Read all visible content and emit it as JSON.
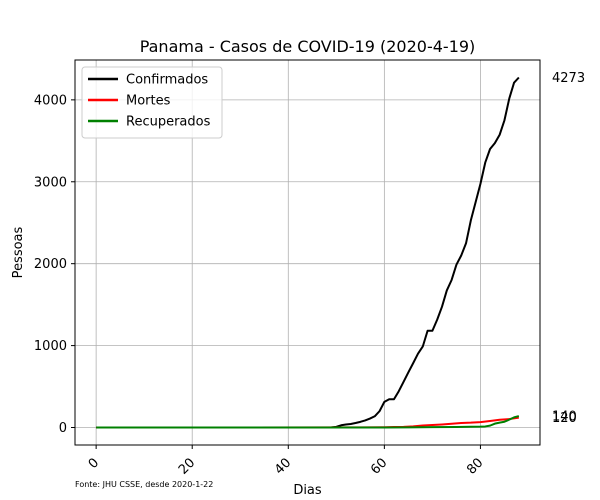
{
  "chart_data": {
    "type": "line",
    "title": "Panama - Casos de COVID-19 (2020-4-19)",
    "xlabel": "Dias",
    "ylabel": "Pessoas",
    "source_note": "Fonte: JHU CSSE, desde 2020-1-22",
    "xlim": [
      -4.4,
      92.4
    ],
    "ylim": [
      -213.65,
      4486.65
    ],
    "xticks": [
      0,
      20,
      40,
      60,
      80
    ],
    "yticks": [
      0,
      1000,
      2000,
      3000,
      4000
    ],
    "grid": true,
    "legend_position": "top-left",
    "series": [
      {
        "name": "Confirmados",
        "color": "#000000",
        "x": [
          0,
          48,
          49,
          50,
          51,
          52,
          53,
          54,
          55,
          56,
          57,
          58,
          59,
          60,
          61,
          62,
          63,
          64,
          65,
          66,
          67,
          68,
          69,
          70,
          71,
          72,
          73,
          74,
          75,
          76,
          77,
          78,
          79,
          80,
          81,
          82,
          83,
          84,
          85,
          86,
          87,
          88
        ],
        "y": [
          0,
          0,
          1,
          8,
          27,
          36,
          43,
          55,
          69,
          86,
          109,
          137,
          200,
          313,
          345,
          345,
          443,
          558,
          674,
          786,
          901,
          989,
          1181,
          1181,
          1317,
          1475,
          1673,
          1801,
          1988,
          2100,
          2249,
          2528,
          2752,
          2974,
          3234,
          3400,
          3472,
          3574,
          3751,
          4016,
          4210,
          4273
        ]
      },
      {
        "name": "Mortes",
        "color": "#ff0000",
        "x": [
          0,
          50,
          55,
          60,
          62,
          64,
          66,
          68,
          70,
          72,
          74,
          76,
          78,
          80,
          82,
          84,
          86,
          88
        ],
        "y": [
          0,
          1,
          2,
          3,
          6,
          8,
          14,
          24,
          30,
          37,
          46,
          55,
          59,
          66,
          79,
          94,
          103,
          120
        ]
      },
      {
        "name": "Recuperados",
        "color": "#008000",
        "x": [
          0,
          60,
          65,
          70,
          75,
          78,
          80,
          81,
          82,
          83,
          84,
          85,
          86,
          87,
          88
        ],
        "y": [
          0,
          0,
          2,
          4,
          6,
          9,
          10,
          13,
          23,
          47,
          60,
          70,
          96,
          124,
          140
        ]
      }
    ],
    "end_labels": [
      "4273",
      "140",
      "120"
    ]
  }
}
